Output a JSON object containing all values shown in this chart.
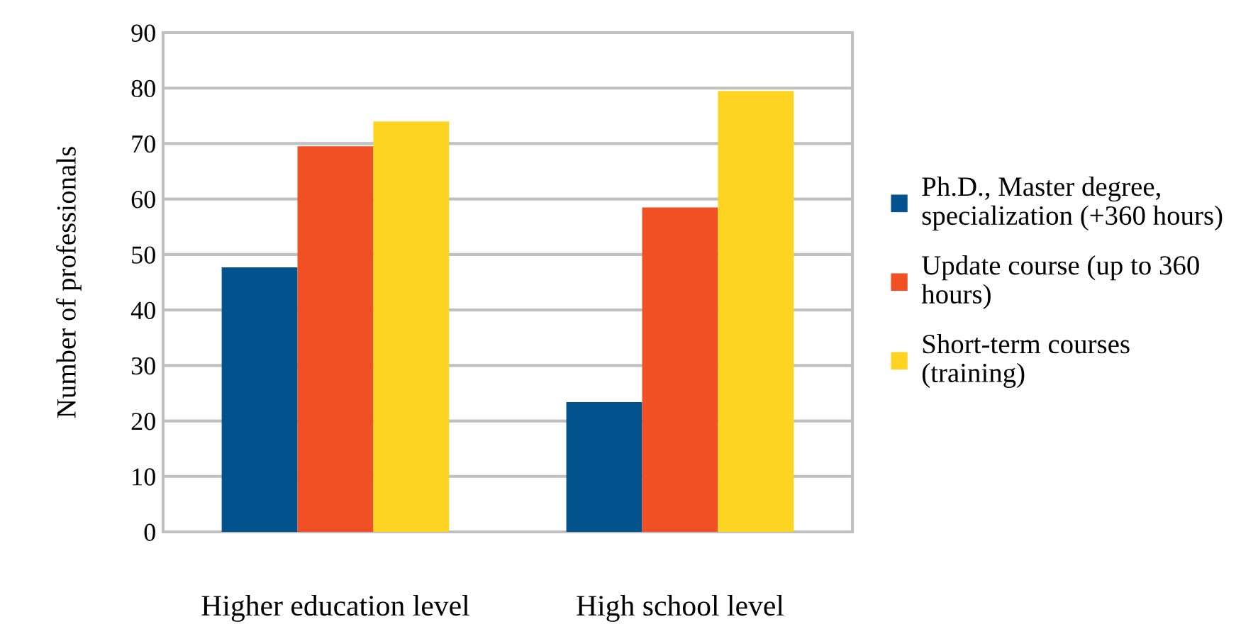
{
  "chart_data": {
    "type": "bar",
    "ylabel": "Number of professionals",
    "categories": [
      "Higher education level",
      "High school level"
    ],
    "series": [
      {
        "name": "Ph.D., Master degree,\nspecialization (+360 hours)",
        "color": "#02528e",
        "values": [
          47.7,
          23.4
        ]
      },
      {
        "name": "Update course (up to 360\nhours)",
        "color": "#f05023",
        "values": [
          69.5,
          58.5
        ]
      },
      {
        "name": "Short-term courses\n(training)",
        "color": "#fcd421",
        "values": [
          74,
          79.5
        ]
      }
    ],
    "ylim": [
      0,
      90
    ],
    "yticks": [
      0,
      10,
      20,
      30,
      40,
      50,
      60,
      70,
      80,
      90
    ],
    "grid": "y",
    "legend": "right"
  }
}
